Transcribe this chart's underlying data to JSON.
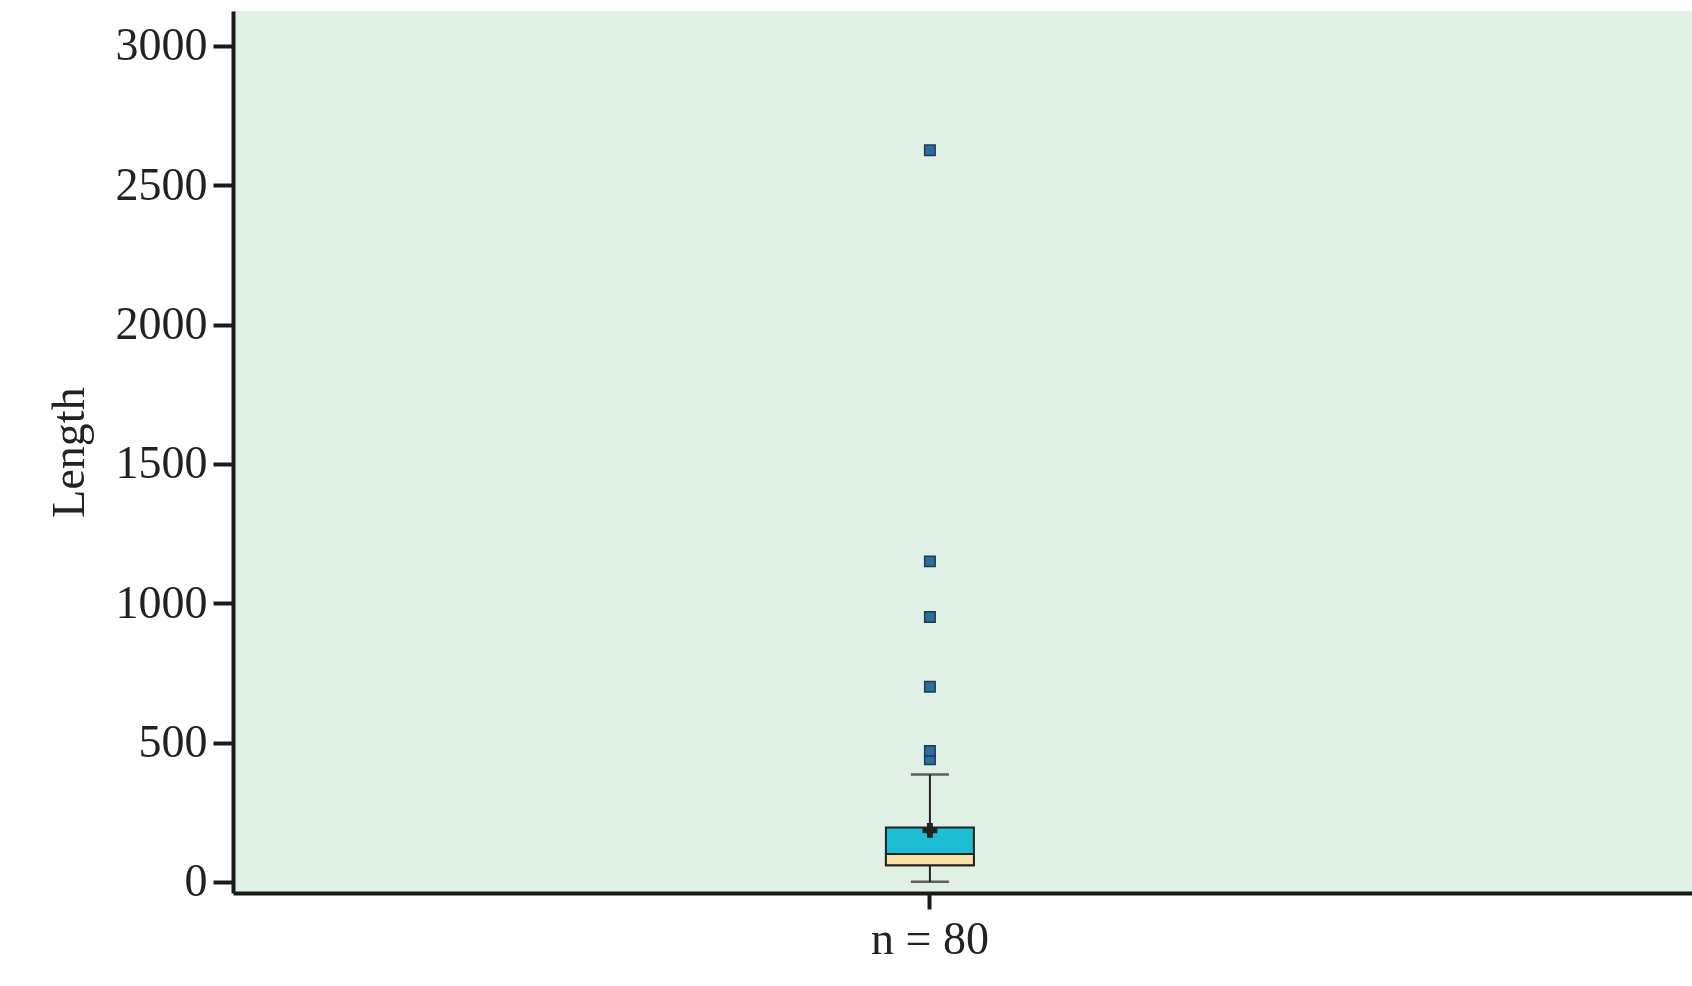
{
  "chart_data": {
    "type": "box",
    "ylabel": "Length",
    "categories": [
      "n = 80"
    ],
    "ylim": [
      -40,
      3125
    ],
    "yticks": [
      0,
      500,
      1000,
      1500,
      2000,
      2500,
      3000
    ],
    "grid": false,
    "marker": "square",
    "series": [
      {
        "color": "#1dbdd3",
        "boxes": [
          {
            "low": 0,
            "q1": 60,
            "median": 100,
            "q3": 195,
            "high": 385,
            "mean": 185,
            "outliers": [
              440,
              470,
              700,
              950,
              1150,
              2625
            ]
          }
        ]
      }
    ]
  }
}
